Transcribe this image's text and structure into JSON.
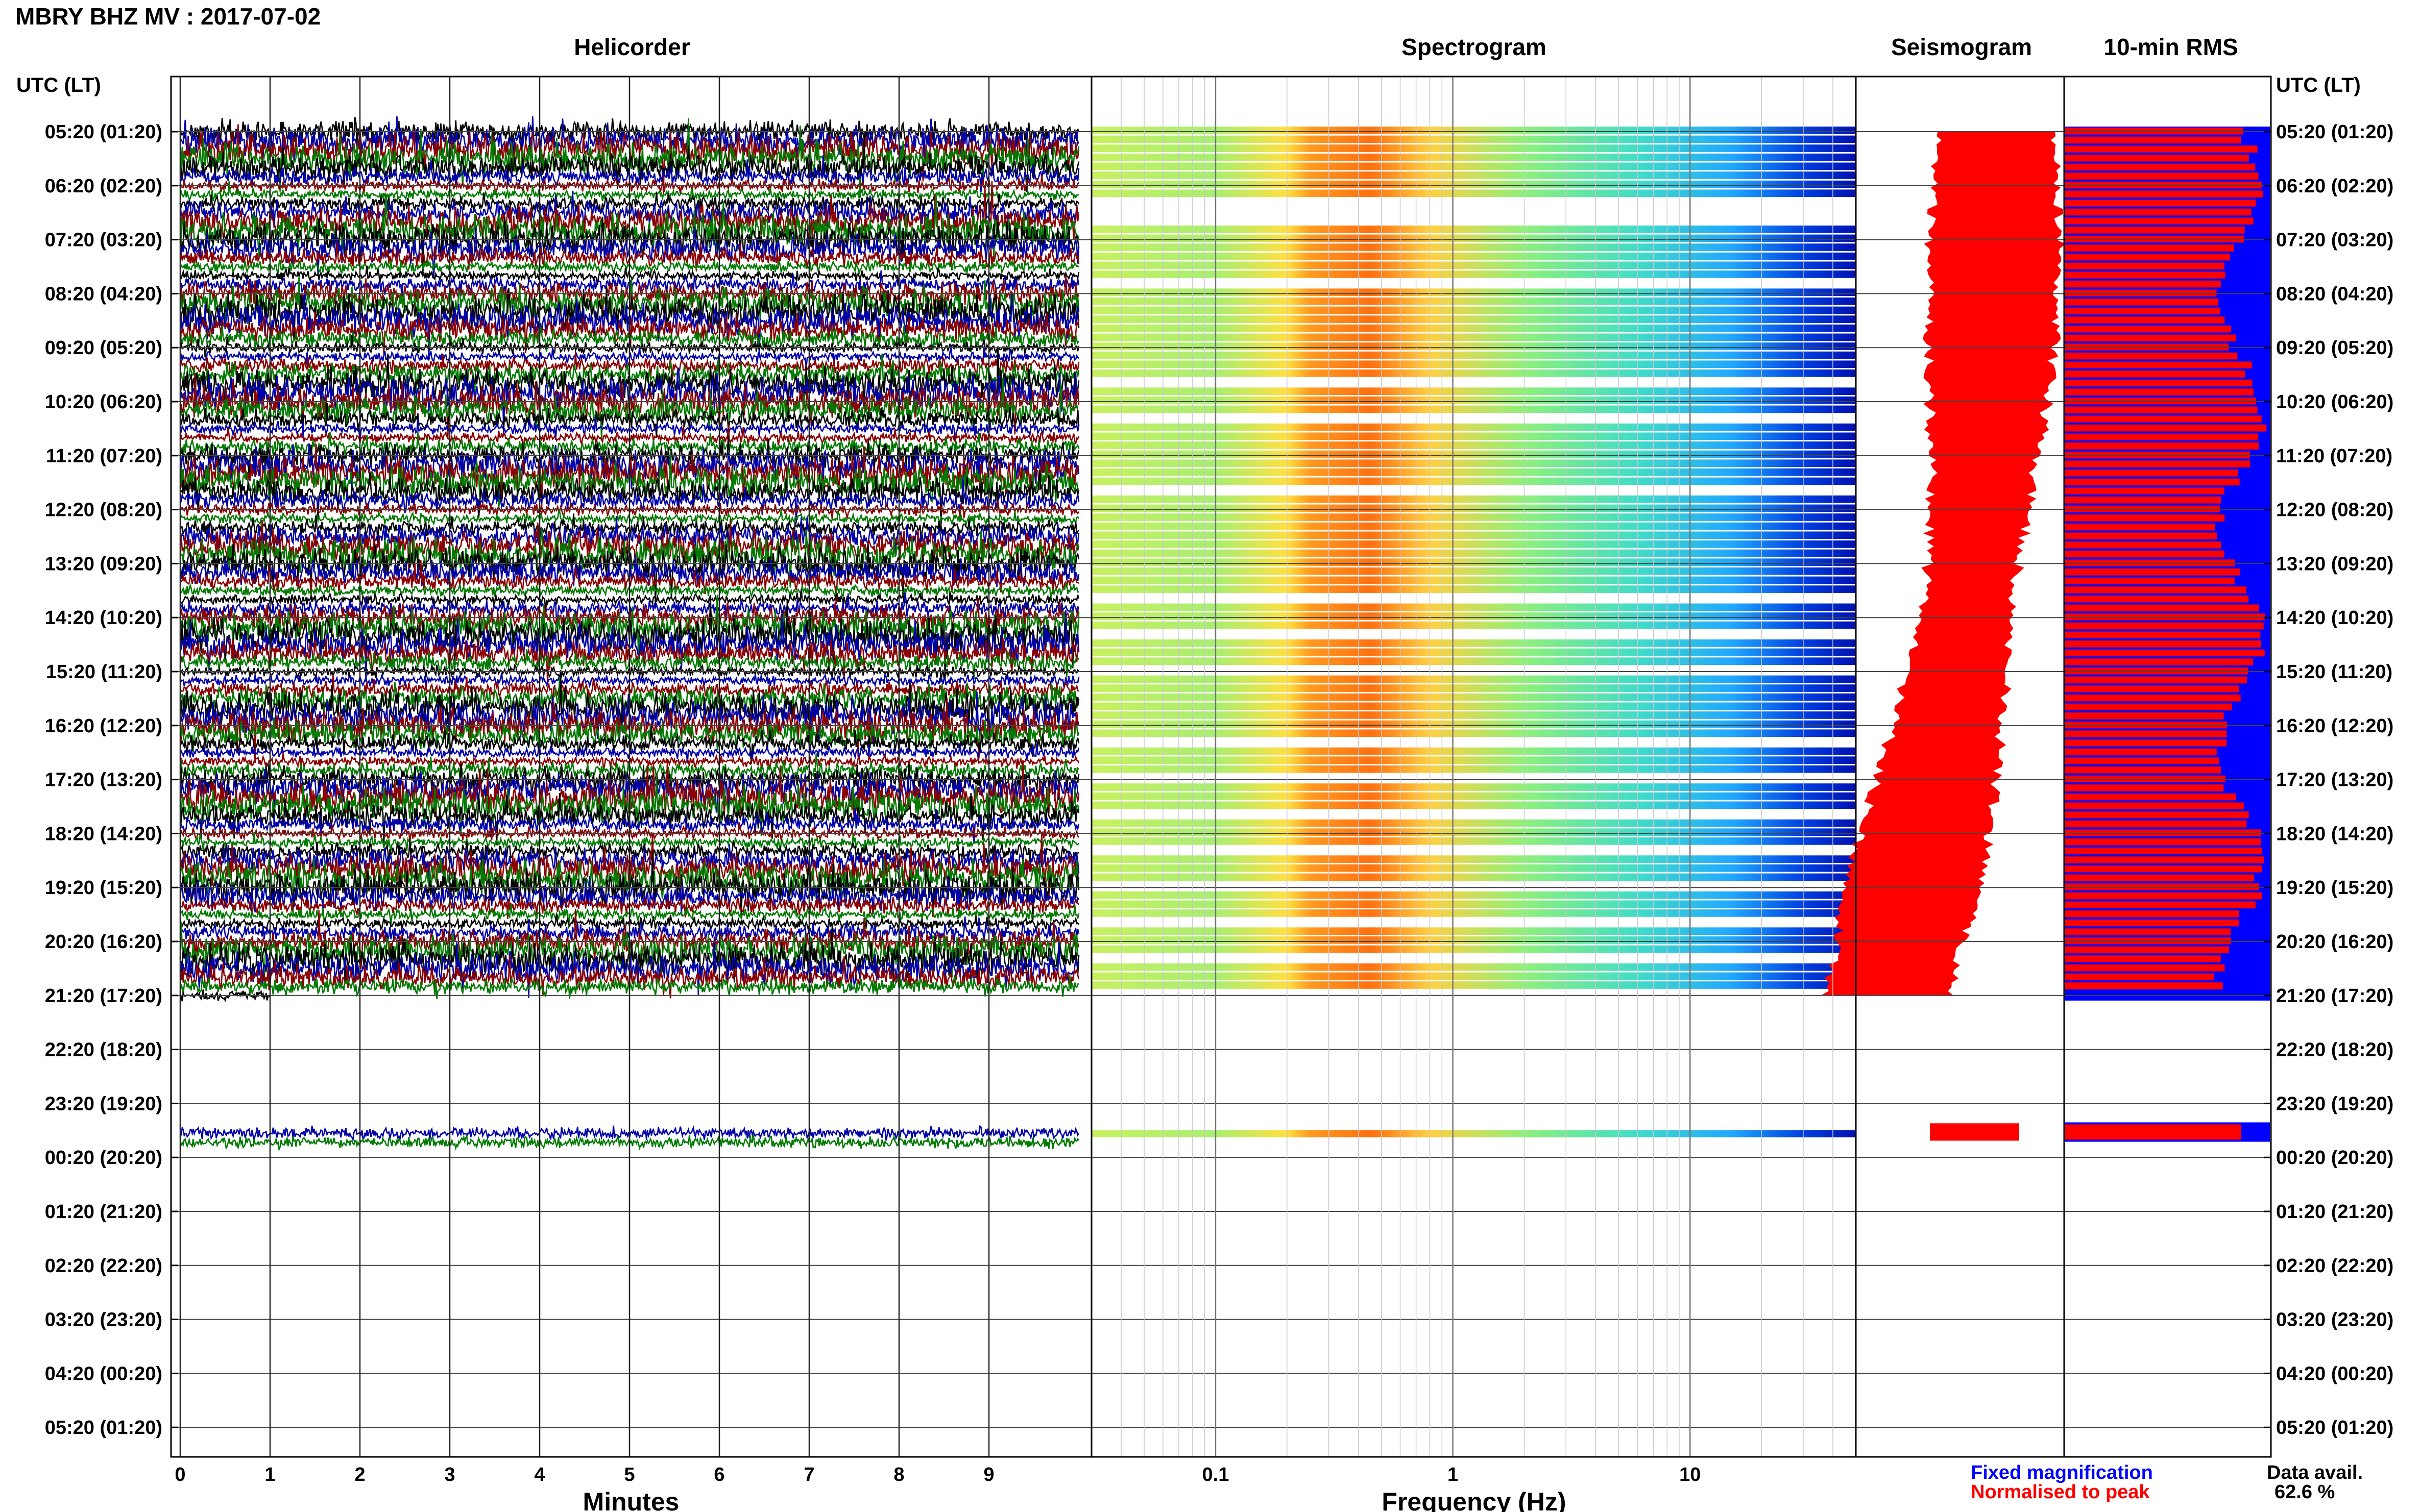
{
  "header": {
    "title": "MBRY BHZ MV : 2017-07-02"
  },
  "chart_data": [
    {
      "type": "line",
      "title": "Helicorder",
      "xlabel": "Minutes",
      "ylabel": "UTC (LT)",
      "xlim": [
        0,
        10
      ],
      "x_ticks": [
        "0",
        "1",
        "2",
        "3",
        "4",
        "5",
        "6",
        "7",
        "8",
        "9"
      ],
      "y_ticks": [
        "05:20 (01:20)",
        "06:20 (02:20)",
        "07:20 (03:20)",
        "08:20 (04:20)",
        "09:20 (05:20)",
        "10:20 (06:20)",
        "11:20 (07:20)",
        "12:20 (08:20)",
        "13:20 (09:20)",
        "14:20 (10:20)",
        "15:20 (11:20)",
        "16:20 (12:20)",
        "17:20 (13:20)",
        "18:20 (14:20)",
        "19:20 (15:20)",
        "20:20 (16:20)",
        "21:20 (17:20)",
        "22:20 (18:20)",
        "23:20 (19:20)",
        "00:20 (20:20)",
        "01:20 (21:20)",
        "02:20 (22:20)",
        "03:20 (23:20)",
        "04:20 (00:20)",
        "05:20 (01:20)"
      ],
      "trace_colors": [
        "#000000",
        "#0000aa",
        "#8b0000",
        "#007a00"
      ],
      "data_hours": [
        [
          0,
          16
        ],
        [
          18.4,
          18.9
        ]
      ]
    },
    {
      "type": "heatmap",
      "title": "Spectrogram",
      "xlabel": "Frequency (Hz)",
      "x_scale": "log",
      "xlim": [
        0.03,
        50
      ],
      "x_ticks": [
        "0.1",
        "1",
        "10"
      ],
      "peak_band_hz": [
        0.25,
        0.8
      ]
    },
    {
      "type": "bar",
      "title": "Seismogram",
      "fill_color": "#ff0000"
    },
    {
      "type": "bar",
      "title": "10-min RMS",
      "ylabel": "UTC (LT)",
      "series": [
        {
          "name": "Fixed magnification",
          "color": "#0000ff"
        },
        {
          "name": "Normalised to peak",
          "color": "#ff0000"
        }
      ]
    }
  ],
  "legend": {
    "fixed": "Fixed magnification",
    "normalised": "Normalised to peak"
  },
  "availability": {
    "label": "Data avail.",
    "value": "62.6 %"
  }
}
